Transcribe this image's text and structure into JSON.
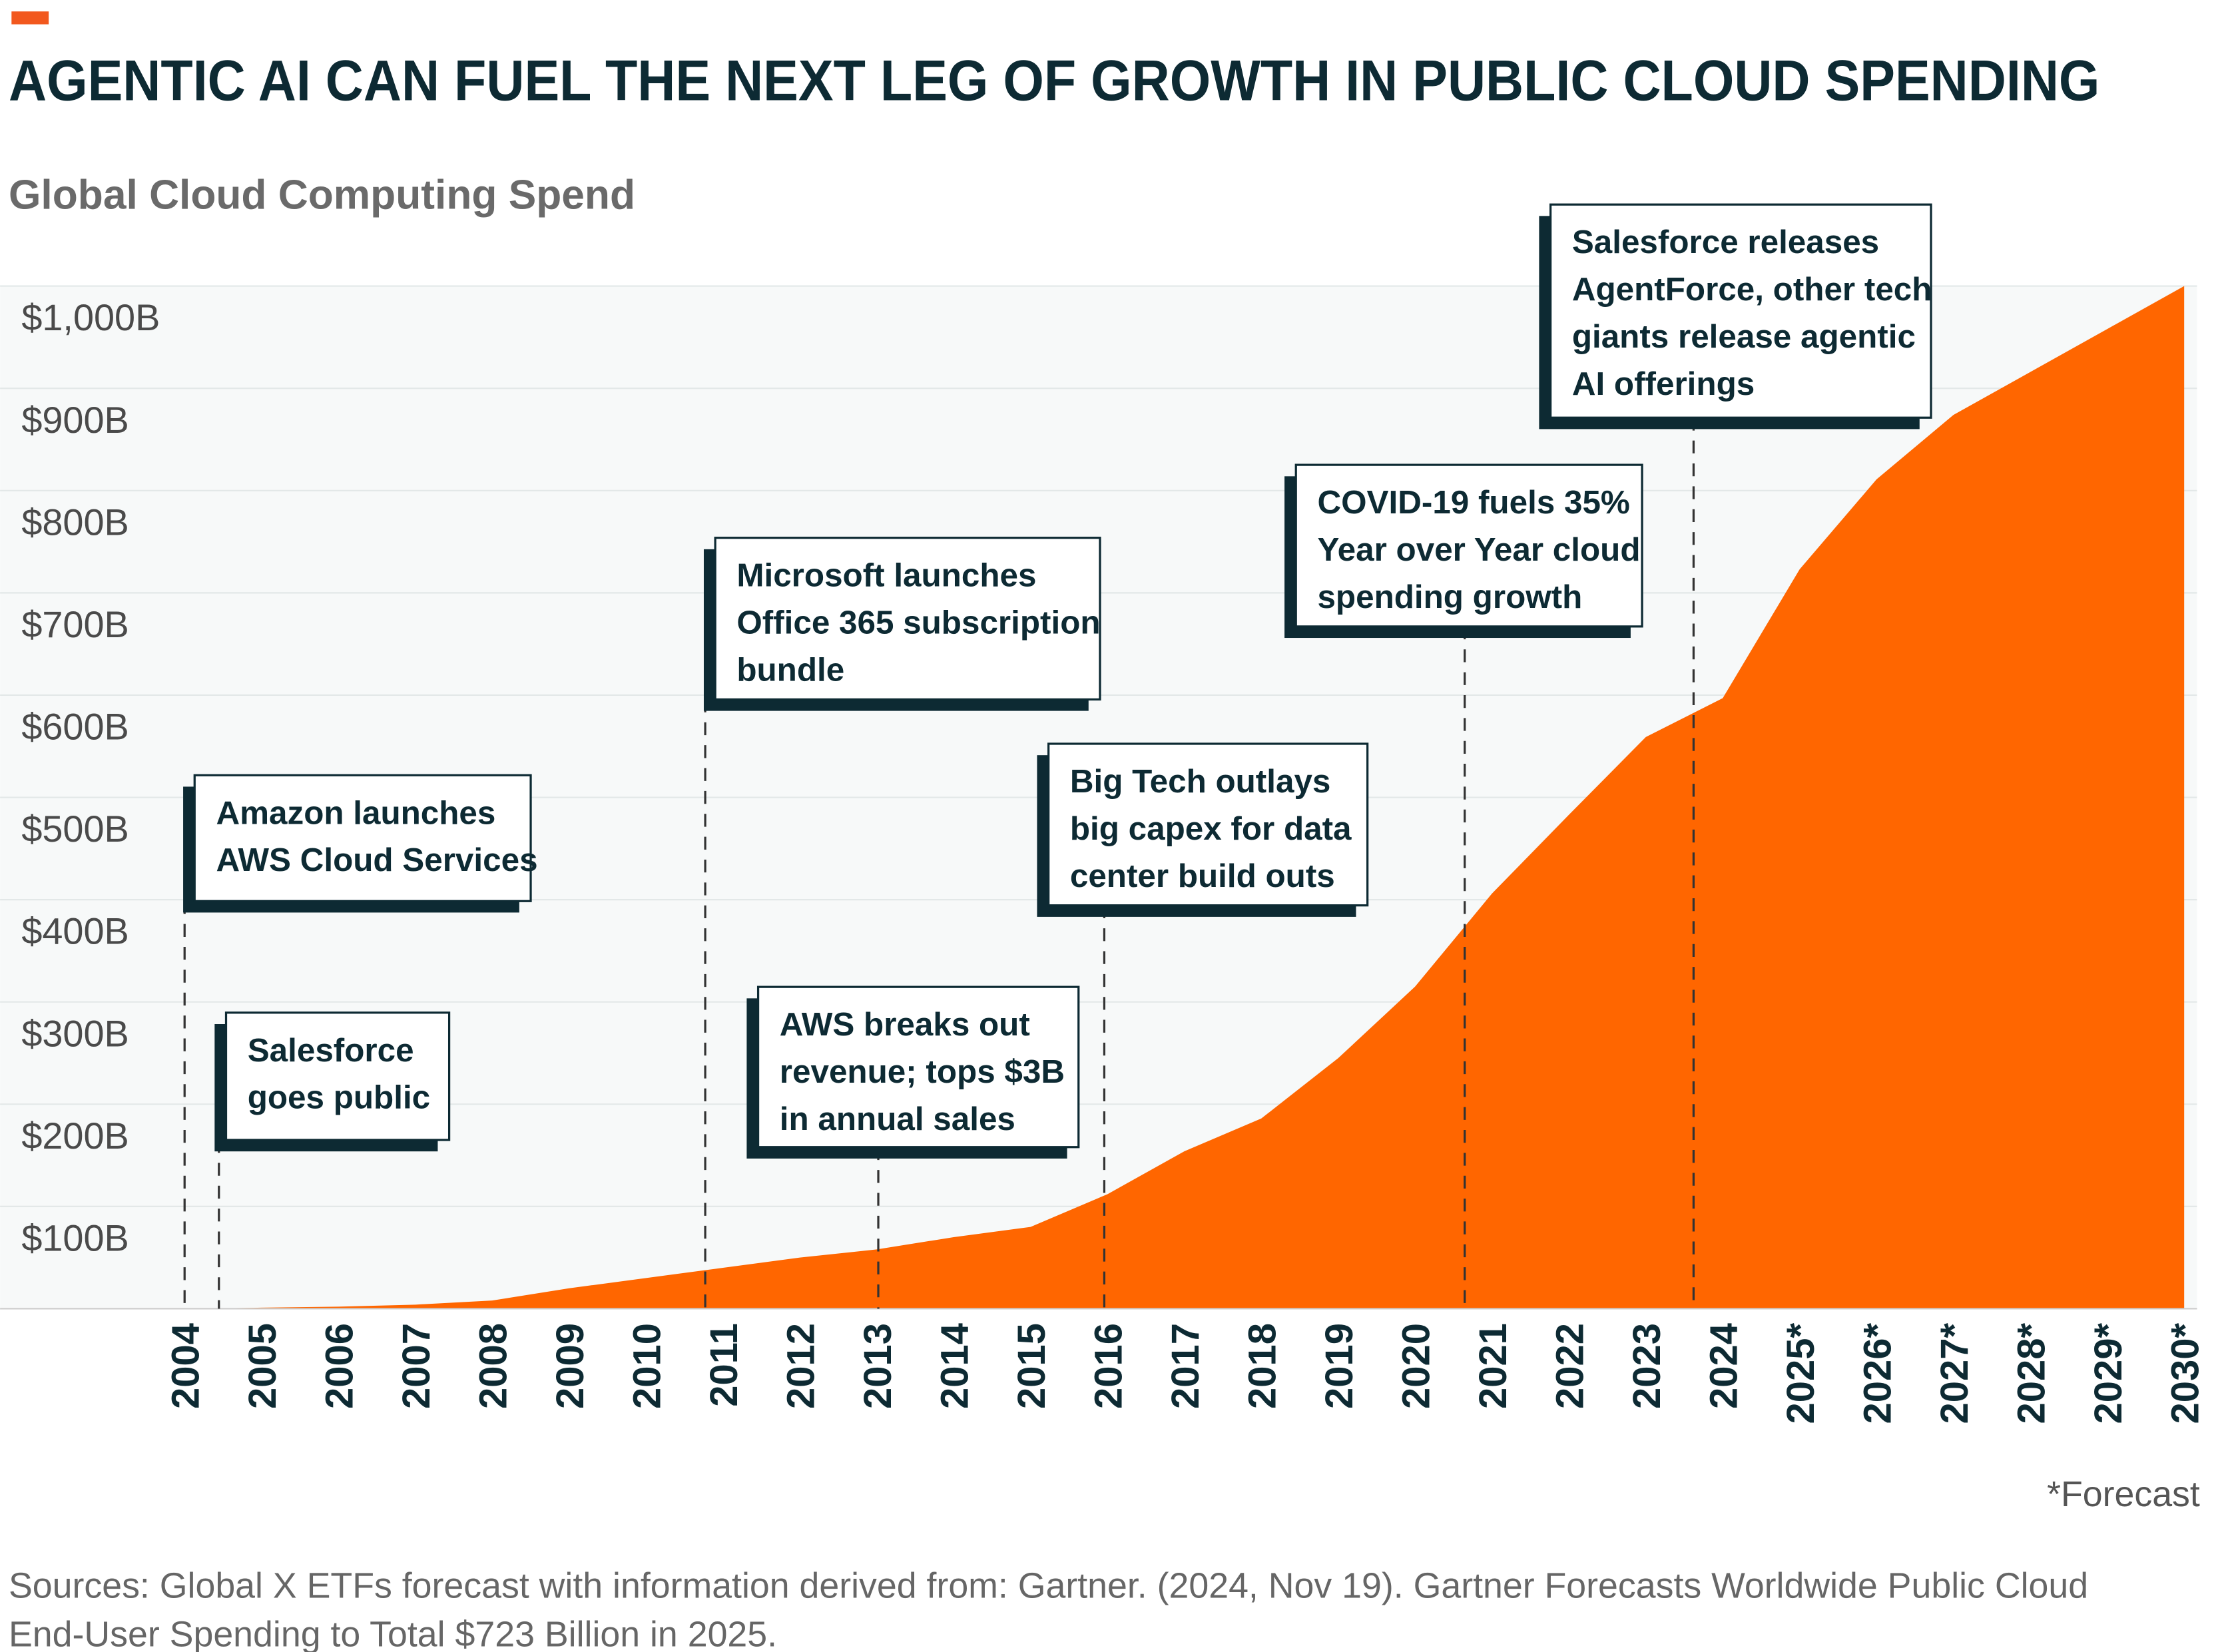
{
  "chart_data": {
    "type": "area",
    "title": "AGENTIC AI CAN FUEL THE NEXT LEG OF GROWTH IN PUBLIC CLOUD SPENDING",
    "subtitle": "Global Cloud Computing Spend",
    "categories": [
      "2004",
      "2005",
      "2006",
      "2007",
      "2008",
      "2009",
      "2010",
      "2011",
      "2012",
      "2013",
      "2014",
      "2015",
      "2016",
      "2017",
      "2018",
      "2019",
      "2020",
      "2021",
      "2022",
      "2023",
      "2024",
      "2025*",
      "2026*",
      "2027*",
      "2028*",
      "2029*",
      "2030*"
    ],
    "values": [
      0,
      1,
      2,
      4,
      8,
      20,
      30,
      40,
      50,
      58,
      70,
      80,
      112,
      154,
      186,
      245,
      315,
      406,
      483,
      559,
      597,
      723,
      811,
      874,
      916,
      958,
      1000
    ],
    "color": "#ff6600",
    "ylim": [
      0,
      1000
    ],
    "yticks": [
      {
        "value": 100,
        "label": "$100B"
      },
      {
        "value": 200,
        "label": "$200B"
      },
      {
        "value": 300,
        "label": "$300B"
      },
      {
        "value": 400,
        "label": "$400B"
      },
      {
        "value": 500,
        "label": "$500B"
      },
      {
        "value": 600,
        "label": "$600B"
      },
      {
        "value": 700,
        "label": "$700B"
      },
      {
        "value": 800,
        "label": "$800B"
      },
      {
        "value": 900,
        "label": "$900B"
      },
      {
        "value": 1000,
        "label": "$1,000B"
      }
    ],
    "grid": true,
    "annotations": [
      {
        "lines": [
          "Amazon launches",
          "AWS Cloud Services"
        ]
      },
      {
        "lines": [
          "Salesforce",
          "goes public"
        ]
      },
      {
        "lines": [
          "Microsoft launches",
          "Office 365 subscription",
          "bundle"
        ]
      },
      {
        "lines": [
          "AWS breaks out",
          "revenue; tops $3B",
          "in annual sales"
        ]
      },
      {
        "lines": [
          "Big Tech outlays",
          "big capex for data",
          "center build outs"
        ]
      },
      {
        "lines": [
          "COVID-19 fuels 35%",
          "Year over Year cloud",
          "spending growth"
        ]
      },
      {
        "lines": [
          "Salesforce releases",
          "AgentForce, other tech",
          "giants release agentic",
          "AI offerings"
        ]
      }
    ],
    "note": "*Forecast",
    "source": [
      "Sources: Global X ETFs forecast with information derived from: Gartner. (2024, Nov 19). Gartner Forecasts Worldwide Public Cloud",
      "End-User Spending to Total $723 Billion in 2025."
    ]
  }
}
